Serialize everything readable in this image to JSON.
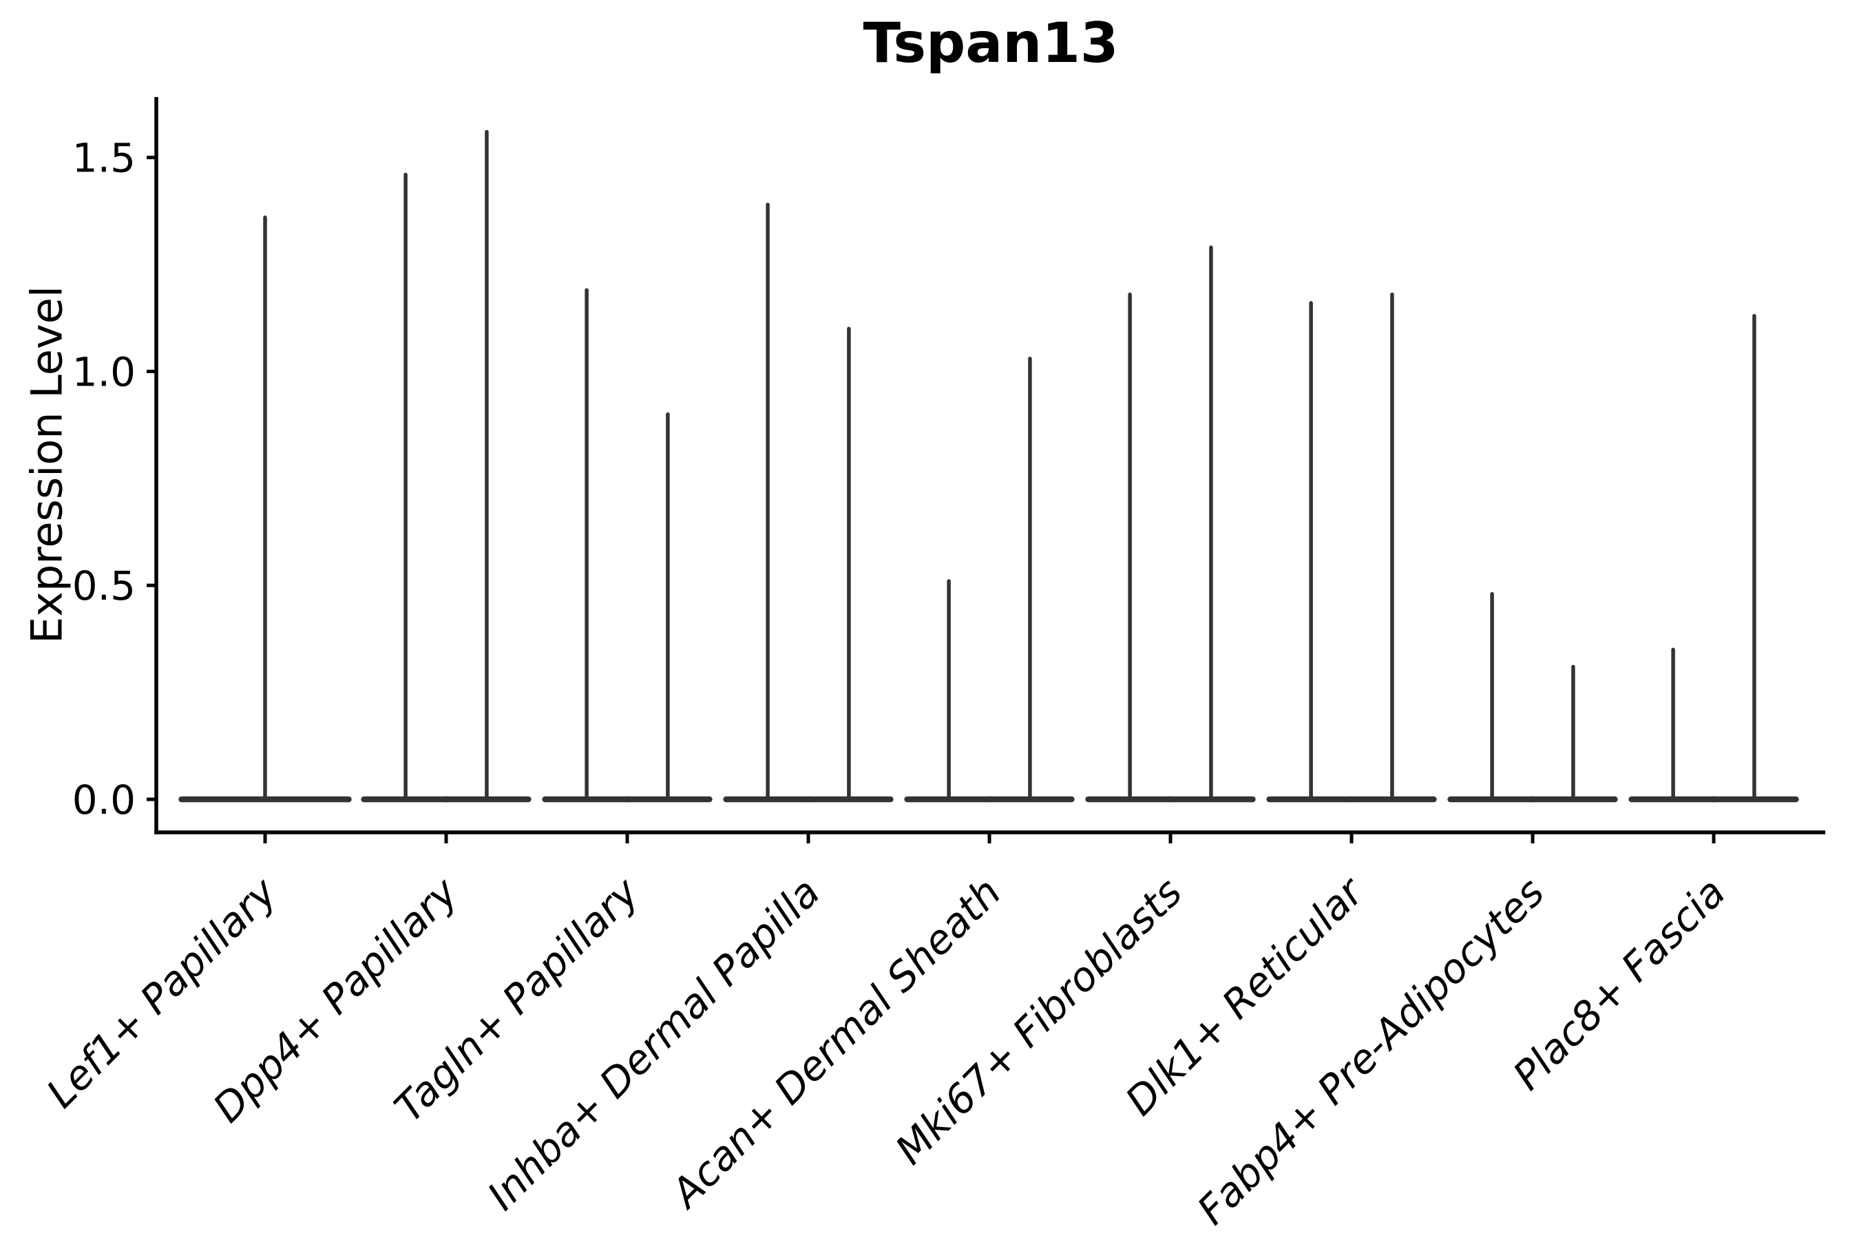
{
  "title": "Tspan13",
  "ylabel": "Expression Level",
  "colors": {
    "violin": "#333333",
    "axis": "#000000",
    "text": "#000000",
    "background": "#ffffff"
  },
  "chart_data": {
    "type": "violin",
    "title": "Tspan13",
    "xlabel": "",
    "ylabel": "Expression Level",
    "ylim": [
      -0.08,
      1.64
    ],
    "yticks": [
      0.0,
      0.5,
      1.0,
      1.5
    ],
    "ytick_labels": [
      "0.0",
      "0.5",
      "1.0",
      "1.5"
    ],
    "grid": false,
    "legend": "none",
    "baseline_value": 0.0,
    "categories": [
      "Lef1+ Papillary",
      "Dpp4+ Papillary",
      "Tagln+ Papillary",
      "Inhba+ Dermal Papilla",
      "Acan+ Dermal Sheath",
      "Mki67+ Fibroblasts",
      "Dlk1+ Reticular",
      "Fabp4+ Pre-Adipocytes",
      "Plac8+ Fascia"
    ],
    "series": [
      {
        "category": "Lef1+ Papillary",
        "violins": [
          {
            "position": "center",
            "max": 1.36
          }
        ]
      },
      {
        "category": "Dpp4+ Papillary",
        "violins": [
          {
            "position": "left",
            "max": 1.46
          },
          {
            "position": "right",
            "max": 1.56
          }
        ]
      },
      {
        "category": "Tagln+ Papillary",
        "violins": [
          {
            "position": "left",
            "max": 1.19
          },
          {
            "position": "right",
            "max": 0.9
          }
        ]
      },
      {
        "category": "Inhba+ Dermal Papilla",
        "violins": [
          {
            "position": "left",
            "max": 1.39
          },
          {
            "position": "right",
            "max": 1.1
          }
        ]
      },
      {
        "category": "Acan+ Dermal Sheath",
        "violins": [
          {
            "position": "left",
            "max": 0.51
          },
          {
            "position": "right",
            "max": 1.03
          }
        ]
      },
      {
        "category": "Mki67+ Fibroblasts",
        "violins": [
          {
            "position": "left",
            "max": 1.18
          },
          {
            "position": "right",
            "max": 1.29
          }
        ]
      },
      {
        "category": "Dlk1+ Reticular",
        "violins": [
          {
            "position": "left",
            "max": 1.16
          },
          {
            "position": "right",
            "max": 1.18
          }
        ]
      },
      {
        "category": "Fabp4+ Pre-Adipocytes",
        "violins": [
          {
            "position": "left",
            "max": 0.48
          },
          {
            "position": "right",
            "max": 0.31
          }
        ]
      },
      {
        "category": "Plac8+ Fascia",
        "violins": [
          {
            "position": "left",
            "max": 0.35
          },
          {
            "position": "right",
            "max": 1.13
          }
        ]
      }
    ]
  }
}
